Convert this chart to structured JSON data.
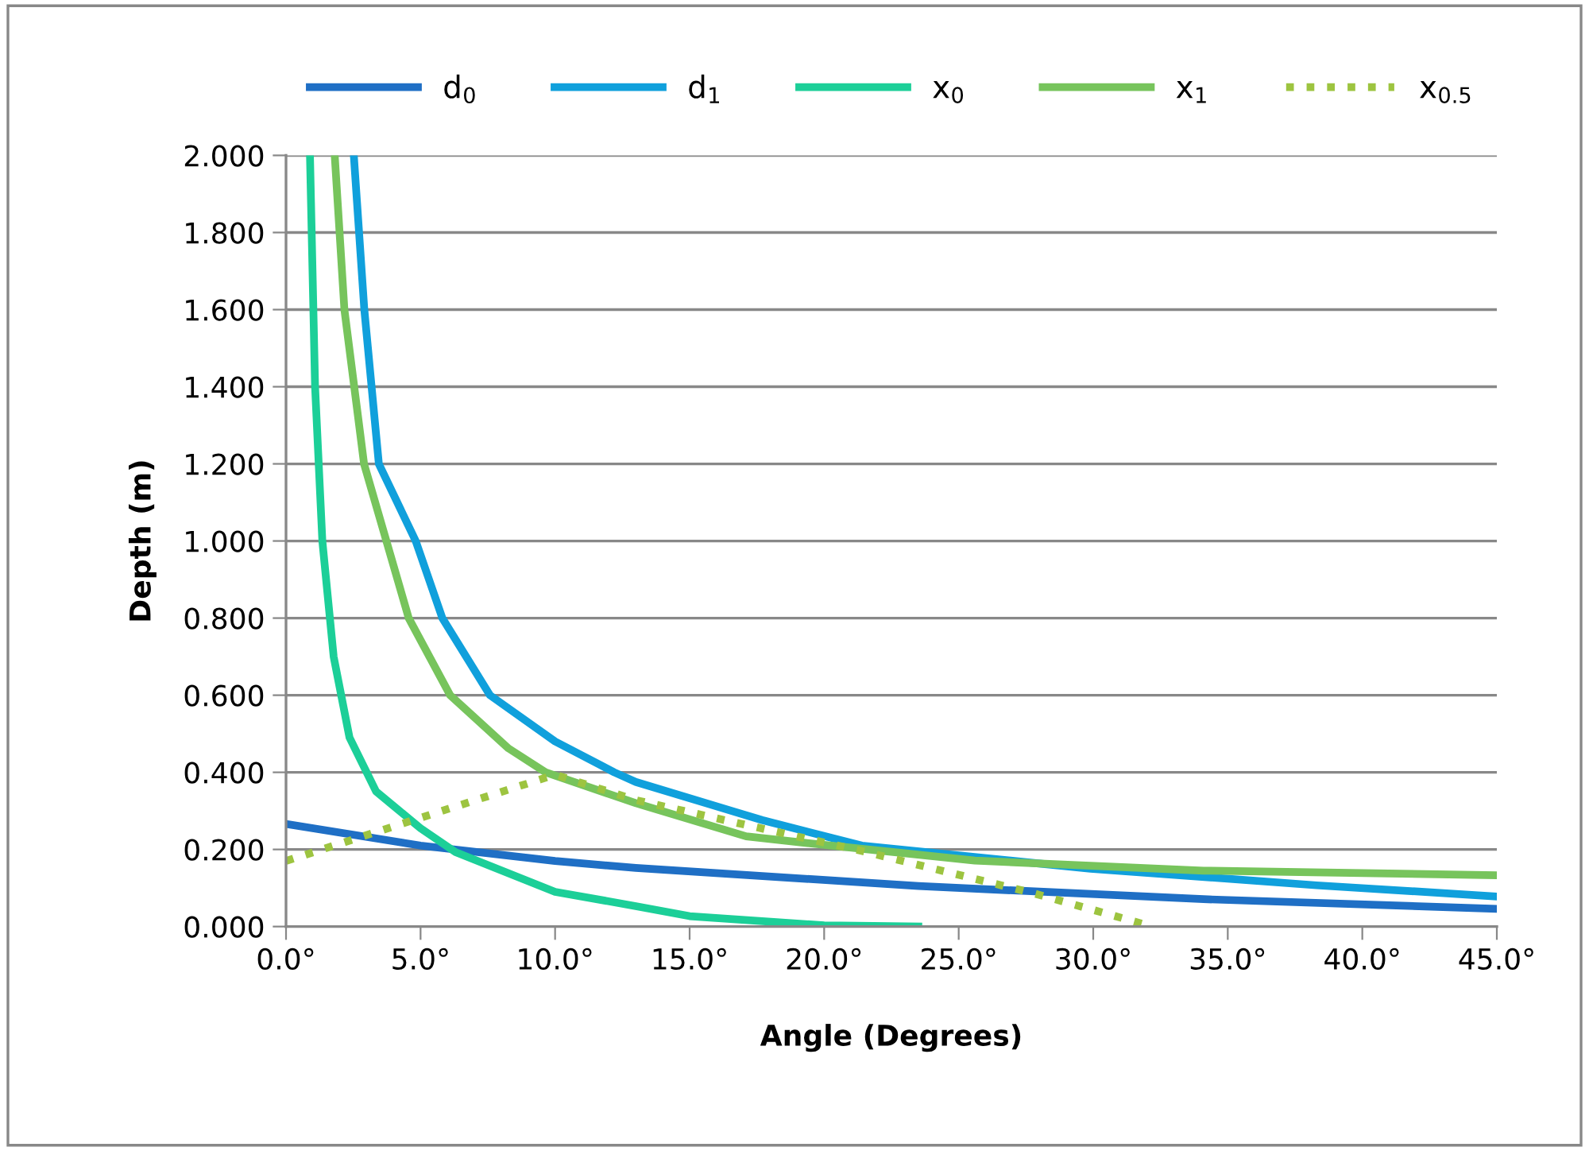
{
  "chart_data": {
    "type": "line",
    "xlabel": "Angle (Degrees)",
    "ylabel": "Depth (m)",
    "xlim": [
      0,
      45
    ],
    "ylim": [
      0,
      2
    ],
    "xticks": [
      {
        "value": 0,
        "label": "0.0°"
      },
      {
        "value": 5,
        "label": "5.0°"
      },
      {
        "value": 10,
        "label": "10.0°"
      },
      {
        "value": 15,
        "label": "15.0°"
      },
      {
        "value": 20,
        "label": "20.0°"
      },
      {
        "value": 25,
        "label": "25.0°"
      },
      {
        "value": 30,
        "label": "30.0°"
      },
      {
        "value": 35,
        "label": "35.0°"
      },
      {
        "value": 40,
        "label": "40.0°"
      },
      {
        "value": 45,
        "label": "45.0°"
      }
    ],
    "yticks": [
      {
        "value": 0,
        "label": "0.000"
      },
      {
        "value": 0.2,
        "label": "0.200"
      },
      {
        "value": 0.4,
        "label": "0.400"
      },
      {
        "value": 0.6,
        "label": "0.600"
      },
      {
        "value": 0.8,
        "label": "0.800"
      },
      {
        "value": 1.0,
        "label": "1.000"
      },
      {
        "value": 1.2,
        "label": "1.200"
      },
      {
        "value": 1.4,
        "label": "1.400"
      },
      {
        "value": 1.6,
        "label": "1.600"
      },
      {
        "value": 1.8,
        "label": "1.800"
      },
      {
        "value": 2.0,
        "label": "2.000"
      }
    ],
    "grid": "y",
    "legend": "top",
    "marker": "none",
    "series": [
      {
        "name": "d$_{0}$",
        "color": "#1f6fc5",
        "x": [
          0,
          5,
          10,
          13,
          23.5,
          34.1,
          45
        ],
        "values": [
          0.266,
          0.21,
          0.17,
          0.152,
          0.105,
          0.071,
          0.046
        ]
      },
      {
        "name": "d$_{1}$",
        "color": "#10a0dc",
        "x": [
          2.52,
          2.91,
          3.45,
          4.82,
          5.81,
          7.58,
          10,
          12.2,
          13,
          17.7,
          21.4,
          29.9,
          38.3,
          45
        ],
        "values": [
          2.0,
          1.6,
          1.2,
          1.0,
          0.8,
          0.6,
          0.48,
          0.4,
          0.375,
          0.276,
          0.21,
          0.15,
          0.107,
          0.078
        ]
      },
      {
        "name": "x$_{0}$",
        "color": "#1ccf98",
        "x": [
          0.89,
          1.08,
          1.35,
          1.77,
          2.36,
          3.35,
          5.0,
          6.3,
          10,
          13,
          15,
          20,
          23.5
        ],
        "values": [
          2.0,
          1.4,
          1.0,
          0.7,
          0.49,
          0.35,
          0.255,
          0.193,
          0.09,
          0.053,
          0.027,
          0.003,
          0
        ]
      },
      {
        "name": "x$_{1}$",
        "color": "#77c45c",
        "x": [
          1.81,
          2.17,
          2.9,
          4.56,
          6.1,
          8.27,
          9.65,
          13,
          17.1,
          19.3,
          25.6,
          34.1,
          45
        ],
        "values": [
          2.0,
          1.6,
          1.2,
          0.8,
          0.6,
          0.462,
          0.4,
          0.32,
          0.234,
          0.217,
          0.171,
          0.145,
          0.133
        ]
      },
      {
        "name": "x$_{0.5}$",
        "color": "#9dc440",
        "line_style": "dotted",
        "x": [
          0,
          10,
          13,
          21.4,
          27.8,
          32.2
        ],
        "values": [
          0.17,
          0.394,
          0.328,
          0.196,
          0.086,
          0
        ]
      }
    ]
  }
}
